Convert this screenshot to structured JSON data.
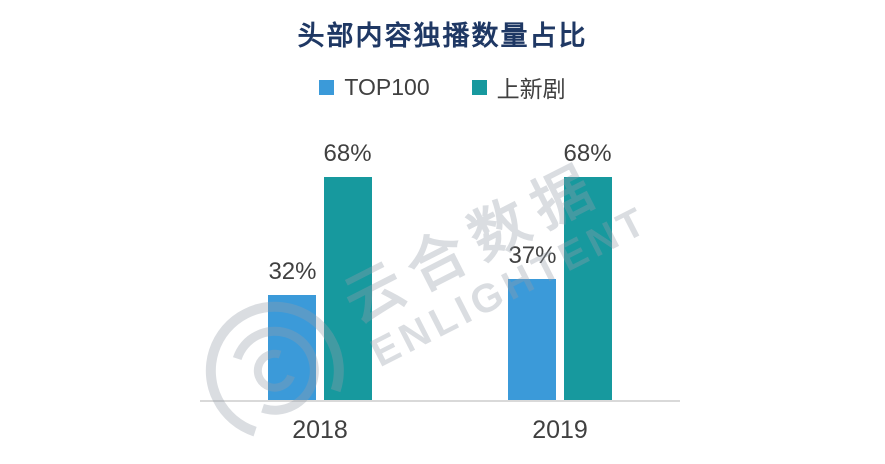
{
  "title": "头部内容独播数量占比",
  "legend": [
    {
      "label": "TOP100",
      "color": "#3b9ad9"
    },
    {
      "label": "上新剧",
      "color": "#17999e"
    }
  ],
  "watermark": {
    "line1": "云合数据",
    "line2": "ENLIGHTENT"
  },
  "chart_data": {
    "type": "bar",
    "title": "头部内容独播数量占比",
    "categories": [
      "2018",
      "2019"
    ],
    "series": [
      {
        "name": "TOP100",
        "color": "#3b9ad9",
        "values": [
          32,
          37
        ]
      },
      {
        "name": "上新剧",
        "color": "#17999e",
        "values": [
          68,
          68
        ]
      }
    ],
    "value_suffix": "%",
    "xlabel": "",
    "ylabel": "",
    "ylim": [
      0,
      100
    ],
    "grid": false,
    "legend_position": "top",
    "data_labels": true
  }
}
